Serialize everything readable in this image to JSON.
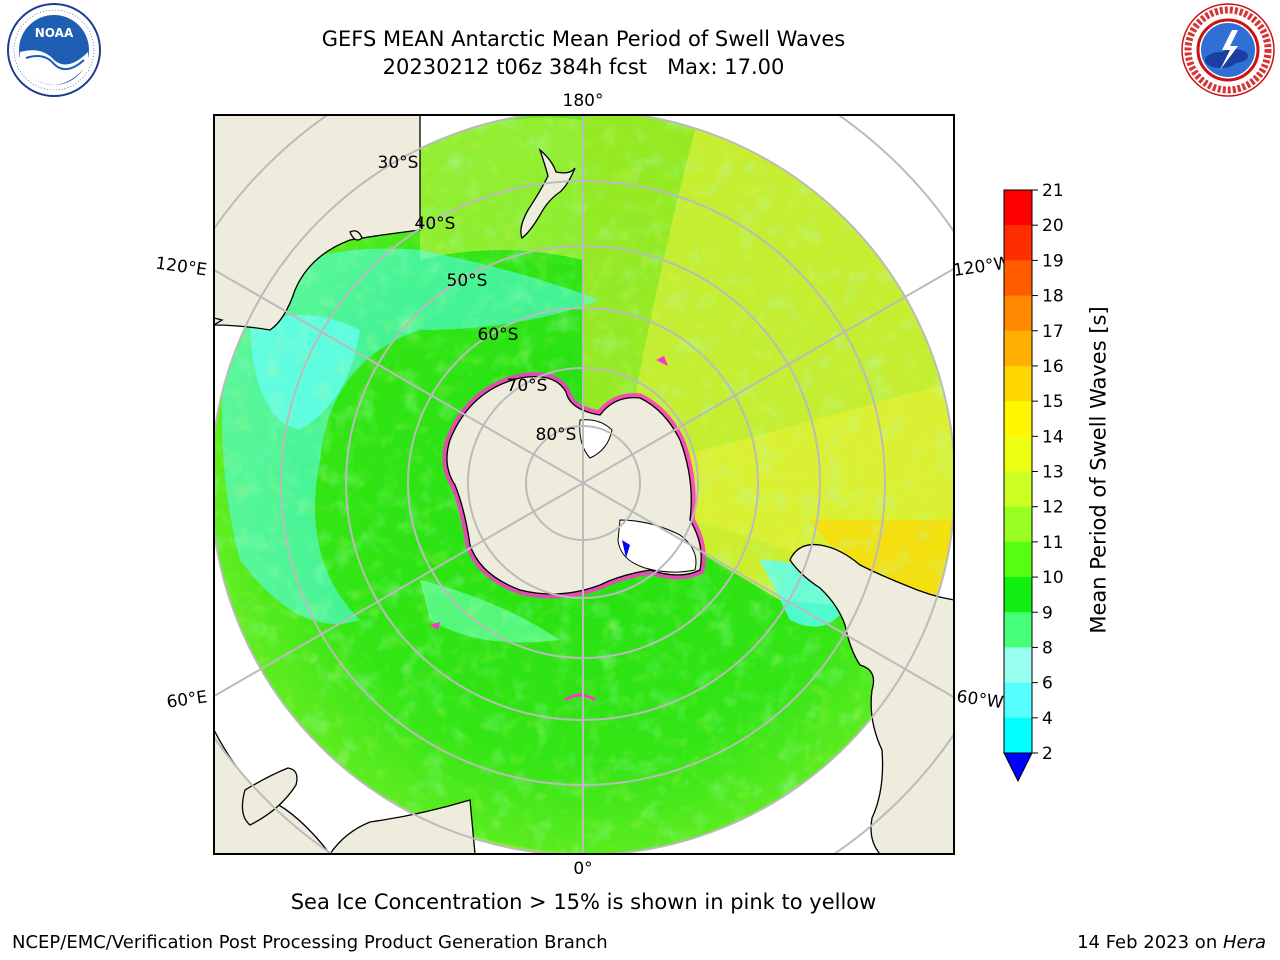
{
  "header": {
    "title_line1": "GEFS MEAN Antarctic Mean Period of Swell Waves",
    "title_line2": "20230212 t06z 384h fcst   Max: 17.00"
  },
  "logos": {
    "left": {
      "icon": "noaa-logo",
      "text": "NOAA",
      "ring_text": "NATIONAL OCEANIC AND ATMOSPHERIC ADMINISTRATION · U.S. DEPARTMENT OF COMMERCE"
    },
    "right": {
      "icon": "nws-logo",
      "ring_text": "NATIONAL WEATHER SERVICE"
    }
  },
  "map": {
    "projection": "south-polar-stereographic",
    "longitude_labels": {
      "top": "180°",
      "bottom": "0°",
      "upper_left": "120°E",
      "upper_right": "120°W",
      "lower_left": "60°E",
      "lower_right": "60°W"
    },
    "latitude_labels": [
      "30°S",
      "40°S",
      "50°S",
      "60°S",
      "70°S",
      "80°S"
    ],
    "colors": {
      "ocean_green": "#22dd11",
      "light_green": "#66ee22",
      "yellow_green": "#ccee33",
      "cyan": "#55ffff",
      "land": "#eeecdc",
      "ice_pink": "#ff33cc",
      "grid": "#bbbbbb"
    }
  },
  "colorbar": {
    "label": "Mean Period of Swell Waves [s]",
    "ticks": [
      "21",
      "20",
      "19",
      "18",
      "17",
      "16",
      "15",
      "14",
      "13",
      "12",
      "11",
      "10",
      "9",
      "8",
      "6",
      "4",
      "2"
    ],
    "colors": [
      "#ff0000",
      "#ff2e00",
      "#ff5c00",
      "#ff8800",
      "#ffb000",
      "#ffd700",
      "#fff700",
      "#eeff11",
      "#ccff22",
      "#99ff22",
      "#55ff11",
      "#11ee11",
      "#44ff77",
      "#99ffee",
      "#55ffff",
      "#00ffff",
      "#0099ff",
      "#0066ff"
    ],
    "extend_color": "#0000ff"
  },
  "note": "Sea Ice Concentration > 15% is shown in pink to yellow",
  "footer": {
    "left": "NCEP/EMC/Verification Post Processing Product Generation Branch",
    "right_prefix": "14 Feb 2023 on ",
    "right_machine": "Hera"
  }
}
